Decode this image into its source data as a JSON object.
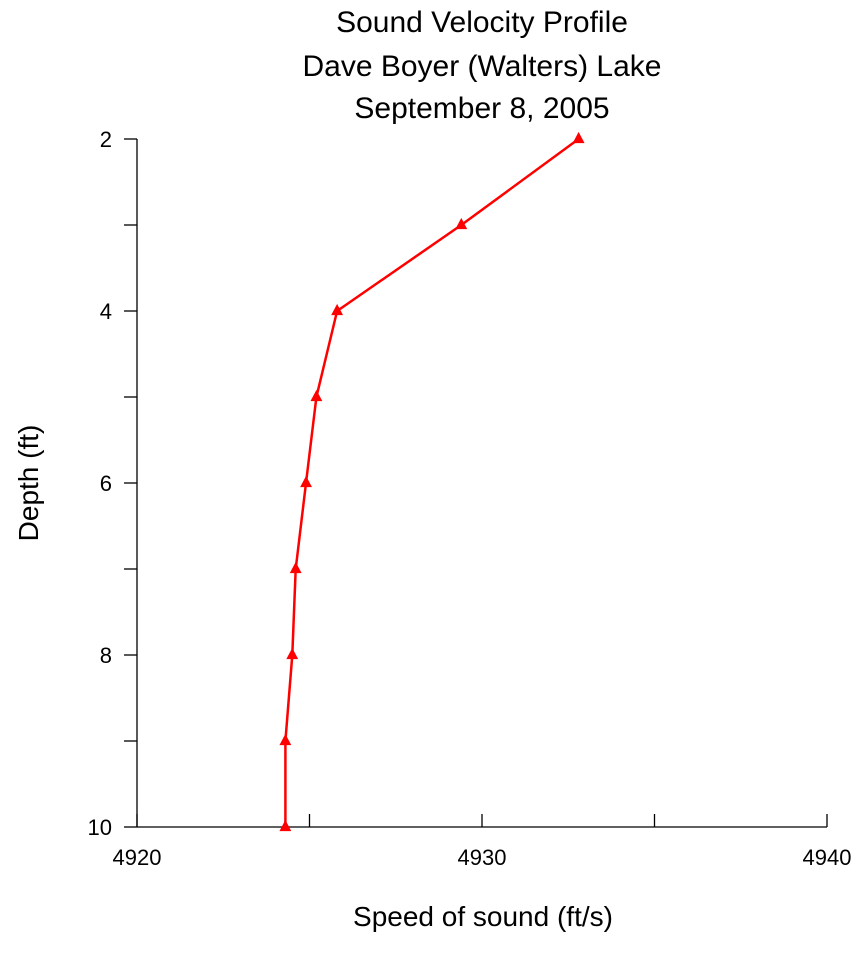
{
  "chart_data": {
    "type": "line",
    "title_lines": [
      "Sound Velocity Profile",
      "Dave Boyer (Walters) Lake",
      "September 8, 2005"
    ],
    "xlabel": "Speed of sound (ft/s)",
    "ylabel": "Depth (ft)",
    "xlim": [
      4920,
      4940
    ],
    "ylim": [
      2,
      10
    ],
    "y_inverted": true,
    "x_major_ticks": [
      4920,
      4930,
      4940
    ],
    "x_minor_ticks": [
      4925,
      4935
    ],
    "y_major_ticks": [
      2,
      4,
      6,
      8,
      10
    ],
    "y_minor_ticks": [
      3,
      5,
      7,
      9
    ],
    "grid": false,
    "marker": "triangle",
    "series": [
      {
        "color": "#ff0000",
        "points": [
          {
            "x": 4932.8,
            "y": 2
          },
          {
            "x": 4929.4,
            "y": 3
          },
          {
            "x": 4925.8,
            "y": 4
          },
          {
            "x": 4925.2,
            "y": 5
          },
          {
            "x": 4924.9,
            "y": 6
          },
          {
            "x": 4924.6,
            "y": 7
          },
          {
            "x": 4924.5,
            "y": 8
          },
          {
            "x": 4924.3,
            "y": 9
          },
          {
            "x": 4924.3,
            "y": 10
          }
        ]
      }
    ]
  }
}
